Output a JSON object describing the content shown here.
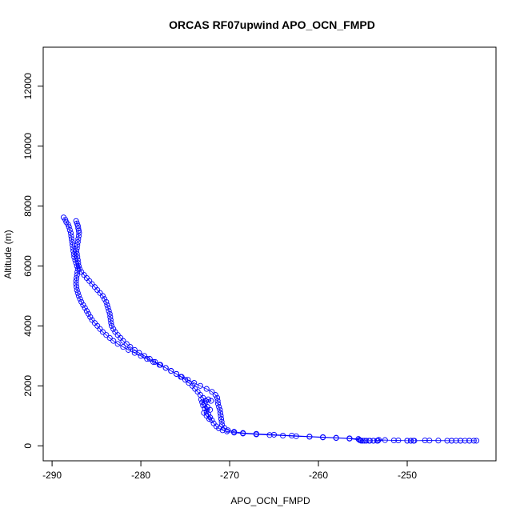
{
  "chart_data": {
    "type": "scatter",
    "title": "ORCAS RF07upwind APO_OCN_FMPD",
    "xlabel": "APO_OCN_FMPD",
    "ylabel": "Altitude (m)",
    "xlim": [
      -291,
      -240
    ],
    "ylim": [
      -500,
      13300
    ],
    "xticks": [
      -290,
      -280,
      -270,
      -260,
      -250
    ],
    "yticks": [
      0,
      2000,
      4000,
      6000,
      8000,
      10000,
      12000
    ],
    "grid": false,
    "marker": "open-circle",
    "connect_points": true,
    "color": "#0000ff",
    "series": [
      {
        "values": [
          [
            -287.3,
            7500
          ],
          [
            -287.2,
            7420
          ],
          [
            -287.1,
            7340
          ],
          [
            -287.05,
            7260
          ],
          [
            -287.0,
            7180
          ],
          [
            -286.95,
            7100
          ],
          [
            -287.0,
            7000
          ],
          [
            -287.05,
            6900
          ],
          [
            -287.1,
            6800
          ],
          [
            -287.15,
            6700
          ],
          [
            -287.2,
            6600
          ],
          [
            -287.25,
            6500
          ],
          [
            -287.2,
            6400
          ],
          [
            -287.15,
            6300
          ],
          [
            -287.1,
            6200
          ],
          [
            -287.05,
            6100
          ],
          [
            -287.0,
            6000
          ],
          [
            -286.9,
            5900
          ],
          [
            -286.7,
            5800
          ],
          [
            -286.4,
            5700
          ],
          [
            -286.1,
            5600
          ],
          [
            -285.8,
            5500
          ],
          [
            -285.5,
            5400
          ],
          [
            -285.2,
            5300
          ],
          [
            -284.9,
            5200
          ],
          [
            -284.6,
            5100
          ],
          [
            -284.3,
            5000
          ],
          [
            -284.1,
            4900
          ],
          [
            -283.9,
            4800
          ],
          [
            -283.8,
            4700
          ],
          [
            -283.7,
            4600
          ],
          [
            -283.6,
            4500
          ],
          [
            -283.5,
            4400
          ],
          [
            -283.45,
            4300
          ],
          [
            -283.4,
            4200
          ],
          [
            -283.35,
            4100
          ],
          [
            -283.3,
            4000
          ],
          [
            -283.1,
            3900
          ],
          [
            -282.9,
            3800
          ],
          [
            -282.6,
            3700
          ],
          [
            -282.3,
            3600
          ],
          [
            -282.0,
            3500
          ],
          [
            -281.6,
            3400
          ],
          [
            -281.2,
            3300
          ],
          [
            -280.7,
            3200
          ],
          [
            -280.2,
            3100
          ],
          [
            -279.6,
            3000
          ],
          [
            -279.0,
            2900
          ],
          [
            -278.4,
            2800
          ],
          [
            -277.8,
            2700
          ],
          [
            -277.2,
            2600
          ],
          [
            -276.6,
            2500
          ],
          [
            -276.0,
            2400
          ],
          [
            -275.4,
            2300
          ],
          [
            -274.7,
            2200
          ],
          [
            -274.0,
            2100
          ],
          [
            -273.3,
            2000
          ],
          [
            -272.6,
            1900
          ],
          [
            -272.0,
            1800
          ],
          [
            -271.6,
            1700
          ],
          [
            -271.4,
            1600
          ],
          [
            -271.35,
            1500
          ],
          [
            -271.3,
            1400
          ],
          [
            -271.2,
            1300
          ],
          [
            -271.1,
            1200
          ],
          [
            -271.05,
            1100
          ],
          [
            -271.0,
            1000
          ],
          [
            -270.95,
            900
          ],
          [
            -270.9,
            800
          ],
          [
            -270.85,
            700
          ],
          [
            -270.6,
            600
          ],
          [
            -270.2,
            520
          ],
          [
            -269.5,
            470
          ],
          [
            -268.5,
            430
          ],
          [
            -267.0,
            400
          ],
          [
            -265.0,
            370
          ],
          [
            -263.0,
            340
          ],
          [
            -261.0,
            310
          ],
          [
            -259.5,
            290
          ],
          [
            -258.0,
            270
          ],
          [
            -256.5,
            250
          ],
          [
            -255.5,
            230
          ],
          [
            -255.3,
            180
          ],
          [
            -255.0,
            170
          ],
          [
            -254.6,
            170
          ],
          [
            -254.2,
            170
          ],
          [
            -253.8,
            170
          ],
          [
            -253.4,
            170
          ],
          [
            -253.2,
            200
          ],
          [
            -251.5,
            180
          ],
          [
            -250.0,
            170
          ],
          [
            -249.6,
            170
          ],
          [
            -249.3,
            170
          ],
          [
            -247.5,
            175
          ],
          [
            -245.5,
            170
          ],
          [
            -245.0,
            170
          ],
          [
            -244.5,
            170
          ],
          [
            -244.0,
            170
          ],
          [
            -243.5,
            170
          ],
          [
            -243.0,
            170
          ],
          [
            -242.5,
            170
          ],
          [
            -242.2,
            170
          ],
          [
            -243.0,
            170
          ],
          [
            -244.0,
            170
          ],
          [
            -245.0,
            170
          ],
          [
            -246.5,
            175
          ],
          [
            -248.0,
            180
          ],
          [
            -249.2,
            170
          ],
          [
            -249.6,
            170
          ],
          [
            -250.0,
            170
          ],
          [
            -251.0,
            180
          ],
          [
            -252.5,
            190
          ],
          [
            -253.3,
            170
          ],
          [
            -253.8,
            170
          ],
          [
            -254.3,
            170
          ],
          [
            -254.8,
            170
          ],
          [
            -255.2,
            170
          ],
          [
            -255.4,
            200
          ],
          [
            -256.5,
            240
          ],
          [
            -258.0,
            260
          ],
          [
            -259.5,
            280
          ],
          [
            -261.0,
            300
          ],
          [
            -262.5,
            320
          ],
          [
            -264.0,
            340
          ],
          [
            -265.5,
            360
          ],
          [
            -267.0,
            380
          ],
          [
            -268.5,
            410
          ],
          [
            -269.5,
            440
          ],
          [
            -270.3,
            480
          ],
          [
            -270.8,
            520
          ],
          [
            -271.2,
            580
          ],
          [
            -271.5,
            650
          ],
          [
            -271.8,
            750
          ],
          [
            -272.0,
            850
          ],
          [
            -272.2,
            950
          ],
          [
            -272.4,
            1050
          ],
          [
            -272.6,
            1150
          ],
          [
            -272.8,
            1250
          ],
          [
            -273.0,
            1350
          ],
          [
            -273.1,
            1450
          ],
          [
            -273.2,
            1550
          ],
          [
            -272.7,
            1500
          ],
          [
            -272.4,
            1550
          ],
          [
            -272.1,
            1500
          ],
          [
            -272.8,
            1400
          ],
          [
            -272.5,
            1300
          ],
          [
            -272.2,
            1200
          ],
          [
            -272.9,
            1100
          ],
          [
            -272.6,
            1000
          ],
          [
            -272.3,
            900
          ],
          [
            -273.0,
            1600
          ],
          [
            -273.3,
            1700
          ],
          [
            -273.6,
            1800
          ],
          [
            -273.9,
            1900
          ],
          [
            -274.2,
            2000
          ],
          [
            -274.6,
            2100
          ],
          [
            -275.0,
            2200
          ],
          [
            -275.5,
            2300
          ],
          [
            -276.0,
            2400
          ],
          [
            -276.6,
            2500
          ],
          [
            -277.2,
            2600
          ],
          [
            -277.9,
            2700
          ],
          [
            -278.6,
            2800
          ],
          [
            -279.3,
            2900
          ],
          [
            -280.0,
            3000
          ],
          [
            -280.7,
            3100
          ],
          [
            -281.4,
            3200
          ],
          [
            -282.0,
            3300
          ],
          [
            -282.6,
            3400
          ],
          [
            -283.1,
            3500
          ],
          [
            -283.5,
            3600
          ],
          [
            -283.9,
            3700
          ],
          [
            -284.3,
            3800
          ],
          [
            -284.6,
            3900
          ],
          [
            -284.9,
            4000
          ],
          [
            -285.2,
            4100
          ],
          [
            -285.5,
            4200
          ],
          [
            -285.7,
            4300
          ],
          [
            -285.9,
            4400
          ],
          [
            -286.1,
            4500
          ],
          [
            -286.3,
            4600
          ],
          [
            -286.5,
            4700
          ],
          [
            -286.7,
            4800
          ],
          [
            -286.85,
            4900
          ],
          [
            -287.0,
            5000
          ],
          [
            -287.1,
            5100
          ],
          [
            -287.2,
            5200
          ],
          [
            -287.25,
            5300
          ],
          [
            -287.3,
            5400
          ],
          [
            -287.3,
            5500
          ],
          [
            -287.25,
            5600
          ],
          [
            -287.2,
            5700
          ],
          [
            -287.15,
            5800
          ],
          [
            -287.1,
            5900
          ],
          [
            -287.2,
            6000
          ],
          [
            -287.3,
            6100
          ],
          [
            -287.4,
            6200
          ],
          [
            -287.5,
            6300
          ],
          [
            -287.55,
            6400
          ],
          [
            -287.6,
            6500
          ],
          [
            -287.65,
            6600
          ],
          [
            -287.7,
            6700
          ],
          [
            -287.75,
            6800
          ],
          [
            -287.8,
            6900
          ],
          [
            -287.85,
            7000
          ],
          [
            -287.9,
            7100
          ],
          [
            -288.0,
            7200
          ],
          [
            -288.1,
            7300
          ],
          [
            -288.2,
            7380
          ],
          [
            -288.4,
            7460
          ],
          [
            -288.5,
            7540
          ],
          [
            -288.7,
            7620
          ]
        ]
      }
    ]
  }
}
